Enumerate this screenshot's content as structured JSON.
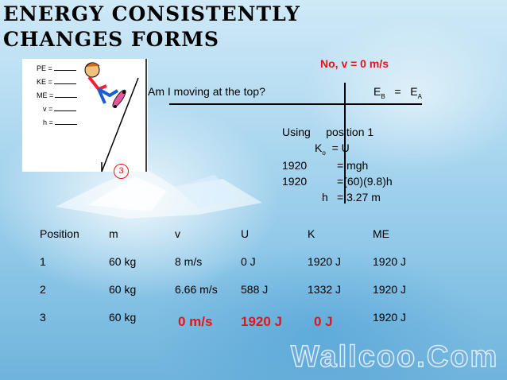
{
  "title": "Energy consistently changes forms",
  "answer_note": "No, v = 0 m/s",
  "question": "Am I moving at the top?",
  "equation": {
    "e": "E",
    "sub_b": "B",
    "eq": "=",
    "sub_a": "A"
  },
  "work": {
    "using": "Using",
    "position": "position 1",
    "ko_k": "K",
    "ko_sub": "o",
    "ko_eq": "=  U",
    "l1_left": "1920",
    "l1_right": "=  mgh",
    "l2_left": "1920",
    "l2_right": "=(60)(9.8)h",
    "l3_left": "h",
    "l3_right": "= 3.27 m"
  },
  "picture": {
    "labels": [
      "PE =",
      "KE =",
      "ME =",
      "v =",
      "h ="
    ],
    "badge": "3",
    "icon": "skateboarder-on-ramp-icon"
  },
  "table": {
    "headers": [
      "Position",
      "m",
      "v",
      "U",
      "K",
      "ME"
    ],
    "rows": [
      [
        "1",
        "60 kg",
        "8 m/s",
        "0 J",
        "1920 J",
        "1920 J"
      ],
      [
        "2",
        "60 kg",
        "6.66 m/s",
        "588 J",
        "1332 J",
        "1920 J"
      ],
      [
        "3",
        "60 kg",
        "0 m/s",
        "1920 J",
        "0 J",
        "1920 J"
      ]
    ],
    "highlight_color": "#e8121a"
  },
  "watermark": "Wallcoo.Com"
}
